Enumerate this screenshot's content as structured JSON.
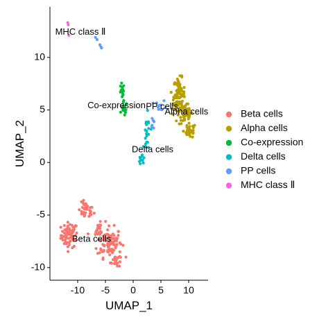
{
  "chart_data": {
    "type": "scatter",
    "title": "",
    "xlabel": "UMAP_1",
    "ylabel": "UMAP_2",
    "xlim": [
      -15,
      13.5
    ],
    "ylim": [
      -11.2,
      14.8
    ],
    "x_ticks": [
      {
        "value": -10,
        "label": "-10"
      },
      {
        "value": -5,
        "label": "-5"
      },
      {
        "value": 0,
        "label": "0"
      },
      {
        "value": 5,
        "label": "5"
      },
      {
        "value": 10,
        "label": "10"
      }
    ],
    "y_ticks": [
      {
        "value": -10,
        "label": "-10"
      },
      {
        "value": -5,
        "label": "-5"
      },
      {
        "value": 0,
        "label": "0"
      },
      {
        "value": 5,
        "label": "5"
      },
      {
        "value": 10,
        "label": "10"
      }
    ],
    "grid": false,
    "legend_position": "right",
    "series": [
      {
        "name": "Beta cells",
        "color": "#F8766D",
        "label": "Beta cells",
        "label_pos": [
          -7.5,
          -7.3
        ],
        "clusters": [
          {
            "cx": -11.5,
            "cy": -6.9,
            "sx": 0.75,
            "sy": 0.6,
            "n": 70
          },
          {
            "cx": -8.5,
            "cy": -4.6,
            "sx": 0.7,
            "sy": 0.4,
            "n": 35
          },
          {
            "cx": -4.3,
            "cy": -7.6,
            "sx": 1.1,
            "sy": 0.7,
            "n": 100
          },
          {
            "cx": -3.2,
            "cy": -9.3,
            "sx": 0.45,
            "sy": 0.35,
            "n": 18
          },
          {
            "cx": -6.0,
            "cy": -6.3,
            "sx": 0.5,
            "sy": 0.4,
            "n": 18
          }
        ]
      },
      {
        "name": "Alpha cells",
        "color": "#B79F00",
        "label": "Alpha cells",
        "label_pos": [
          9.6,
          4.8
        ],
        "clusters": [
          {
            "cx": 8.3,
            "cy": 6.5,
            "sx": 0.5,
            "sy": 0.75,
            "n": 70
          },
          {
            "cx": 9.5,
            "cy": 4.6,
            "sx": 0.6,
            "sy": 0.5,
            "n": 45
          },
          {
            "cx": 10.2,
            "cy": 3.0,
            "sx": 0.55,
            "sy": 0.35,
            "n": 35
          },
          {
            "cx": 7.4,
            "cy": 5.2,
            "sx": 0.35,
            "sy": 0.4,
            "n": 12
          }
        ]
      },
      {
        "name": "Co-expression",
        "color": "#00BA38",
        "label": "Co-expression",
        "label_pos": [
          -3.0,
          5.4
        ],
        "clusters": [
          {
            "cx": -2.0,
            "cy": 6.6,
            "sx": 0.2,
            "sy": 0.45,
            "n": 14
          },
          {
            "cx": -1.6,
            "cy": 5.1,
            "sx": 0.25,
            "sy": 0.35,
            "n": 14
          }
        ]
      },
      {
        "name": "Delta cells",
        "color": "#00BFC4",
        "label": "Delta cells",
        "label_pos": [
          3.5,
          1.2
        ],
        "clusters": [
          {
            "cx": 2.5,
            "cy": 2.5,
            "sx": 0.3,
            "sy": 1.0,
            "n": 24
          },
          {
            "cx": 1.6,
            "cy": 0.4,
            "sx": 0.3,
            "sy": 0.3,
            "n": 10
          }
        ]
      },
      {
        "name": "PP cells",
        "color": "#619CFF",
        "label": "PP cells",
        "label_pos": [
          5.2,
          5.3
        ],
        "clusters": [
          {
            "cx": 5.0,
            "cy": 5.4,
            "sx": 0.5,
            "sy": 0.25,
            "n": 10
          },
          {
            "cx": 3.4,
            "cy": 4.0,
            "sx": 0.3,
            "sy": 0.4,
            "n": 6
          }
        ],
        "points": [
          [
            -6.8,
            11.9
          ],
          [
            -6.5,
            11.7
          ],
          [
            -6.0,
            11.2
          ],
          [
            -5.8,
            11.0
          ],
          [
            -5.7,
            10.9
          ]
        ]
      },
      {
        "name": "MHC class Ⅱ",
        "color": "#F564E3",
        "label": "MHC class Ⅱ",
        "label_pos": [
          -9.5,
          12.4
        ],
        "points": [
          [
            -11.8,
            13.3
          ],
          [
            -11.7,
            13.1
          ],
          [
            -11.6,
            12.1
          ]
        ]
      }
    ]
  }
}
